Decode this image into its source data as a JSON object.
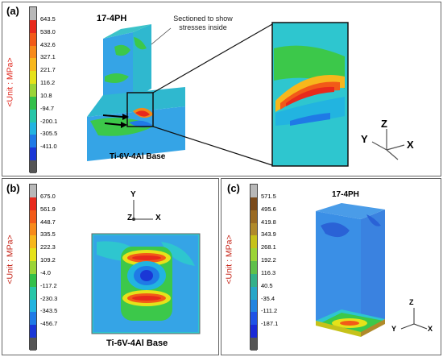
{
  "panels": {
    "a": {
      "label": "(a)",
      "unit_label": "<Unit : MPa>",
      "ticks": [
        "643.5",
        "538.0",
        "432.6",
        "327.1",
        "221.7",
        "116.2",
        "10.8",
        "-94.7",
        "-200.1",
        "-305.5",
        "-411.0"
      ],
      "material_top": "17-4PH",
      "material_base": "Ti-6V-4Al Base",
      "annotation": "Sectioned to show stresses inside",
      "axes": {
        "x": "X",
        "y": "Y",
        "z": "Z"
      }
    },
    "b": {
      "label": "(b)",
      "unit_label": "<Unit : MPa>",
      "ticks": [
        "675.0",
        "561.9",
        "448.7",
        "335.5",
        "222.3",
        "109.2",
        "-4.0",
        "-117.2",
        "-230.3",
        "-343.5",
        "-456.7"
      ],
      "material_base": "Ti-6V-4Al Base",
      "axes": {
        "x": "X",
        "y": "Y",
        "z": "Z"
      }
    },
    "c": {
      "label": "(c)",
      "unit_label": "<Unit : MPa>",
      "ticks": [
        "571.5",
        "495.6",
        "419.8",
        "343.9",
        "268.1",
        "192.2",
        "116.3",
        "40.5",
        "-35.4",
        "-111.2",
        "-187.1"
      ],
      "material_top": "17-4PH",
      "axes": {
        "x": "X",
        "y": "Y",
        "z": "Z"
      }
    }
  },
  "colors": {
    "scale_a": [
      "#b8b8b8",
      "#e8291c",
      "#f25a18",
      "#f78a1a",
      "#f7b71c",
      "#e6e21a",
      "#9bd437",
      "#33c04a",
      "#27c6a8",
      "#22b4e0",
      "#1f7ae6",
      "#1a37d6",
      "#555555"
    ],
    "scale_c": [
      "#b8b8b8",
      "#7a4a1a",
      "#9a6a22",
      "#b08a2a",
      "#c6c21a",
      "#9bd437",
      "#5fc04a",
      "#33b08a",
      "#27a6c8",
      "#2284e0",
      "#1f52e6",
      "#1a2ad6",
      "#555555"
    ],
    "part_blue": "#3a9be8",
    "part_cyan": "#2ec6cf",
    "green": "#38c84a"
  }
}
